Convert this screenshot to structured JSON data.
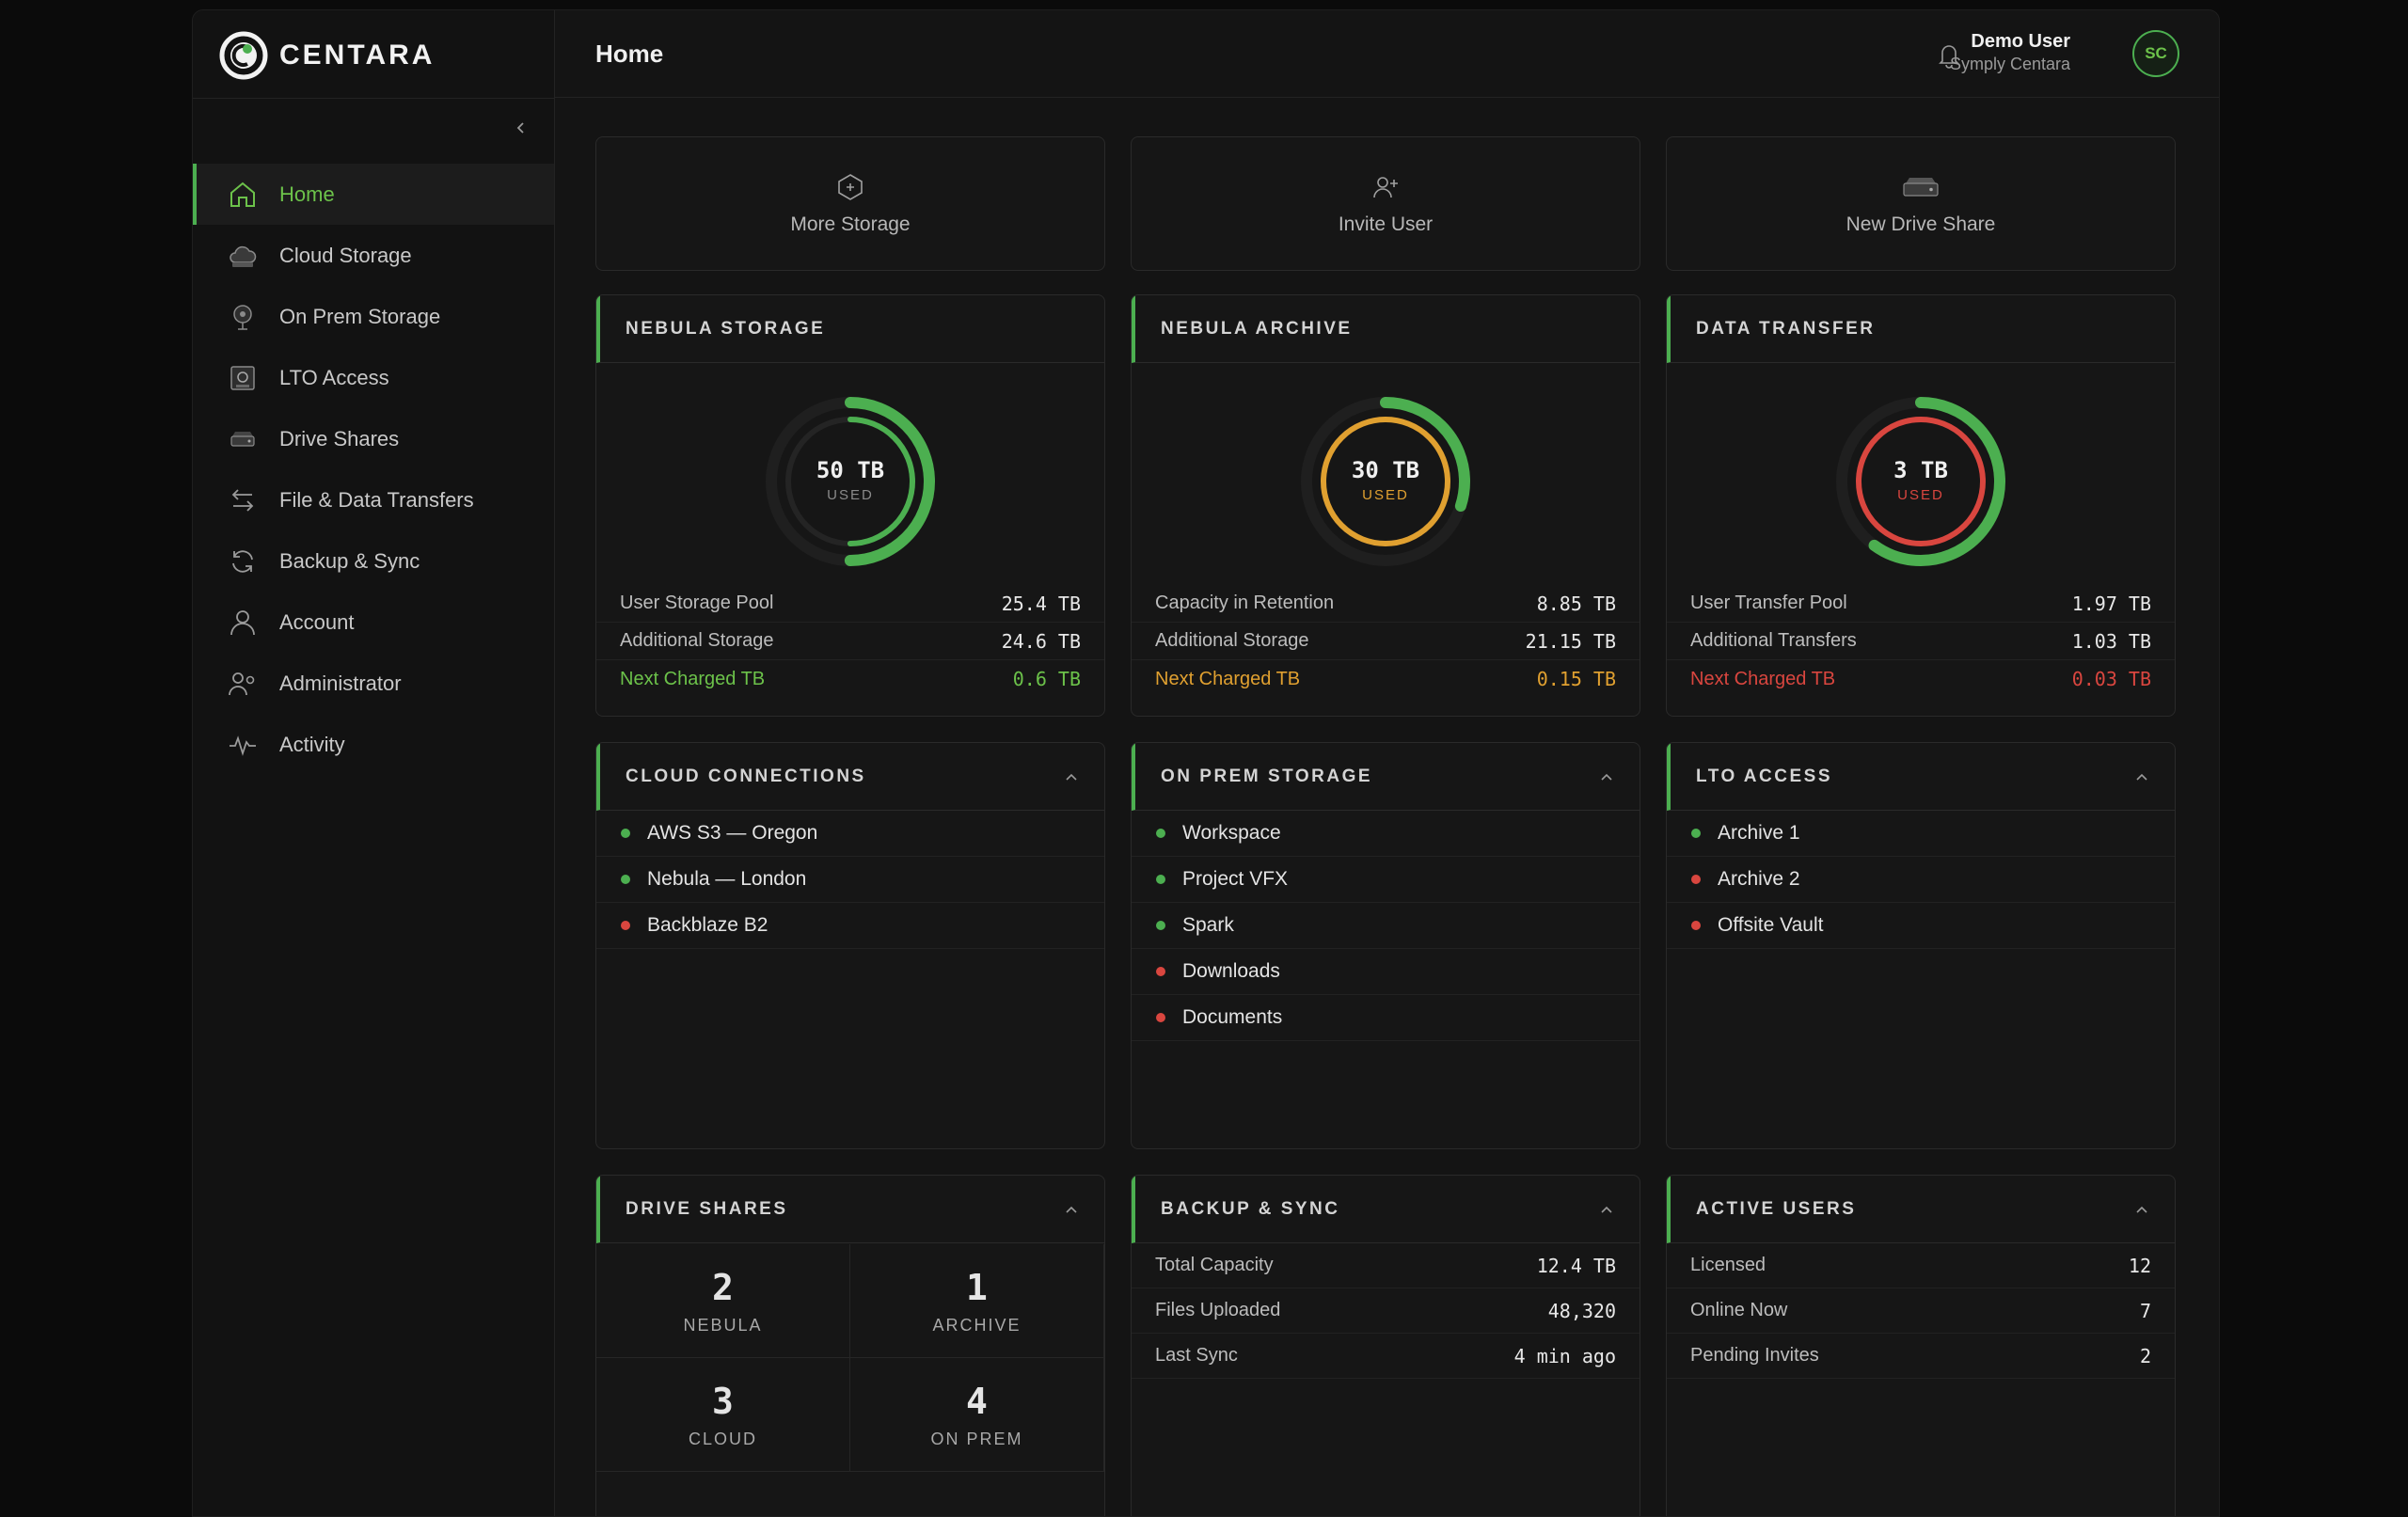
{
  "brand": {
    "name": "CENTARA"
  },
  "header": {
    "title": "Home",
    "user_name": "Demo User",
    "user_org": "Symply Centara",
    "avatar_initials": "SC"
  },
  "sidebar": {
    "items": [
      {
        "label": "Home",
        "icon": "home-icon"
      },
      {
        "label": "Cloud Storage",
        "icon": "cloud-icon"
      },
      {
        "label": "On Prem Storage",
        "icon": "server-icon"
      },
      {
        "label": "LTO Access",
        "icon": "tape-icon"
      },
      {
        "label": "Drive Shares",
        "icon": "drive-icon"
      },
      {
        "label": "File & Data Transfers",
        "icon": "transfer-icon"
      },
      {
        "label": "Backup & Sync",
        "icon": "sync-icon"
      },
      {
        "label": "Account",
        "icon": "user-icon"
      },
      {
        "label": "Administrator",
        "icon": "admin-icon"
      },
      {
        "label": "Activity",
        "icon": "activity-icon"
      }
    ]
  },
  "actions": {
    "more_storage": "More Storage",
    "invite_user": "Invite User",
    "new_drive_share": "New Drive Share"
  },
  "colors": {
    "accent": "#4caf50",
    "warning": "#e0a030",
    "danger": "#d9463f"
  },
  "nebula_storage": {
    "title": "NEBULA STORAGE",
    "used_value": "50 TB",
    "used_label": "USED",
    "fraction": 0.5,
    "rows": [
      {
        "label": "User Storage Pool",
        "value": "25.4 TB"
      },
      {
        "label": "Additional Storage",
        "value": "24.6 TB"
      },
      {
        "label": "Next Charged TB",
        "value": "0.6 TB"
      }
    ]
  },
  "nebula_archive": {
    "title": "NEBULA ARCHIVE",
    "used_value": "30 TB",
    "used_label": "USED",
    "fraction": 0.3,
    "rows": [
      {
        "label": "Capacity in Retention",
        "value": "8.85 TB"
      },
      {
        "label": "Additional Storage",
        "value": "21.15 TB"
      },
      {
        "label": "Next Charged TB",
        "value": "0.15 TB"
      }
    ]
  },
  "data_transfer": {
    "title": "DATA TRANSFER",
    "used_value": "3 TB",
    "used_label": "USED",
    "fraction": 0.6,
    "rows": [
      {
        "label": "User Transfer Pool",
        "value": "1.97 TB"
      },
      {
        "label": "Additional Transfers",
        "value": "1.03 TB"
      },
      {
        "label": "Next Charged TB",
        "value": "0.03 TB"
      }
    ]
  },
  "cloud_connections": {
    "title": "CLOUD CONNECTIONS",
    "items": [
      {
        "label": "AWS S3 — Oregon",
        "status": "online"
      },
      {
        "label": "Nebula — London",
        "status": "online"
      },
      {
        "label": "Backblaze B2",
        "status": "offline"
      }
    ]
  },
  "on_prem_storage": {
    "title": "ON PREM STORAGE",
    "items": [
      {
        "label": "Workspace",
        "status": "online"
      },
      {
        "label": "Project VFX",
        "status": "online"
      },
      {
        "label": "Spark",
        "status": "online"
      },
      {
        "label": "Downloads",
        "status": "offline"
      },
      {
        "label": "Documents",
        "status": "offline"
      }
    ]
  },
  "lto_access": {
    "title": "LTO ACCESS",
    "items": [
      {
        "label": "Archive 1",
        "status": "online"
      },
      {
        "label": "Archive 2",
        "status": "offline"
      },
      {
        "label": "Offsite Vault",
        "status": "offline"
      }
    ]
  },
  "drive_shares": {
    "title": "DRIVE SHARES",
    "cells": [
      {
        "num": "2",
        "label": "NEBULA"
      },
      {
        "num": "1",
        "label": "ARCHIVE"
      },
      {
        "num": "3",
        "label": "CLOUD"
      },
      {
        "num": "4",
        "label": "ON PREM"
      }
    ]
  },
  "backup_sync": {
    "title": "BACKUP & SYNC",
    "rows": [
      {
        "label": "Total Capacity",
        "value": "12.4 TB"
      },
      {
        "label": "Files Uploaded",
        "value": "48,320"
      },
      {
        "label": "Last Sync",
        "value": "4 min ago"
      }
    ]
  },
  "active_users": {
    "title": "ACTIVE USERS",
    "rows": [
      {
        "label": "Licensed",
        "value": "12"
      },
      {
        "label": "Online Now",
        "value": "7"
      },
      {
        "label": "Pending Invites",
        "value": "2"
      }
    ]
  }
}
